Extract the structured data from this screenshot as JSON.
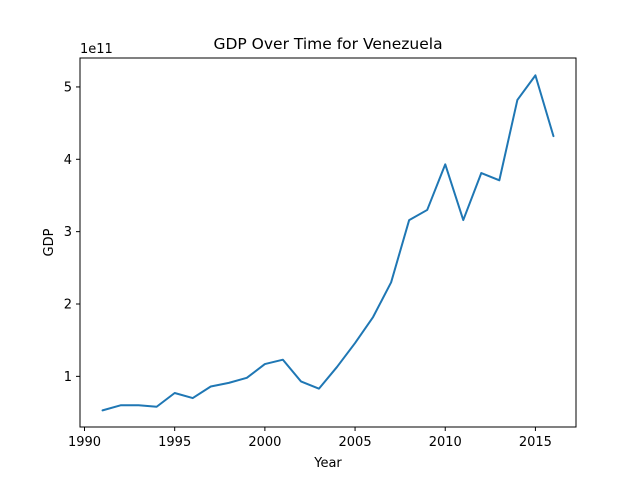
{
  "chart_data": {
    "type": "line",
    "title": "GDP Over Time for Venezuela",
    "xlabel": "Year",
    "ylabel": "GDP",
    "y_offset_label": "1e11",
    "y_scale_factor": 100000000000.0,
    "xlim": [
      1989.75,
      2017.25
    ],
    "ylim": [
      0.3,
      5.4
    ],
    "x_ticks": [
      1990,
      1995,
      2000,
      2005,
      2010,
      2015
    ],
    "y_ticks": [
      1,
      2,
      3,
      4,
      5
    ],
    "grid": false,
    "legend": "none",
    "line_color": "#1f77b4",
    "x": [
      1991,
      1992,
      1993,
      1994,
      1995,
      1996,
      1997,
      1998,
      1999,
      2000,
      2001,
      2002,
      2003,
      2004,
      2005,
      2006,
      2007,
      2008,
      2009,
      2010,
      2011,
      2012,
      2013,
      2014,
      2015,
      2016
    ],
    "series": [
      {
        "values": [
          0.53,
          0.6,
          0.6,
          0.58,
          0.77,
          0.7,
          0.86,
          0.91,
          0.98,
          1.17,
          1.23,
          0.93,
          0.83,
          1.13,
          1.46,
          1.82,
          2.3,
          3.16,
          3.3,
          3.93,
          3.16,
          3.81,
          3.71,
          4.82,
          5.16,
          4.32
        ]
      }
    ]
  }
}
